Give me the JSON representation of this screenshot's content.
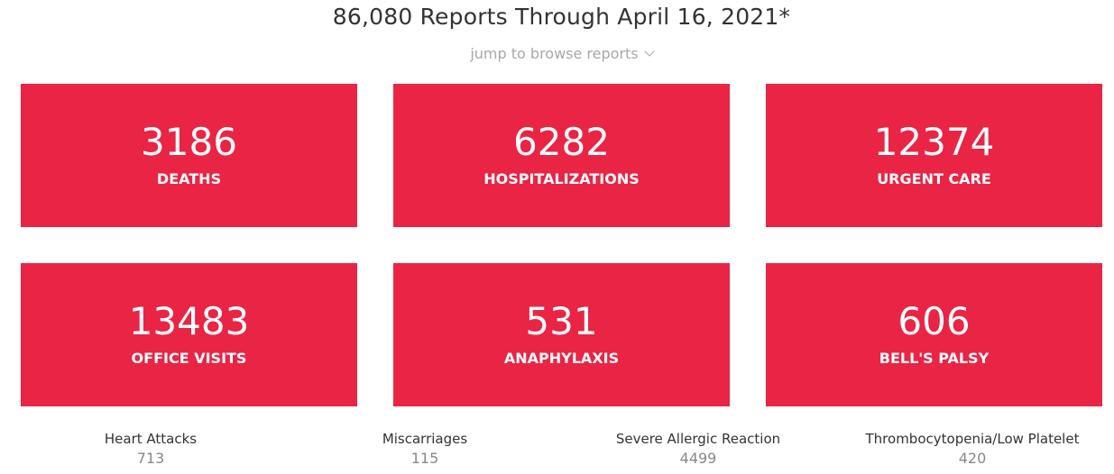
{
  "header": {
    "title": "86,080 Reports Through April 16, 2021*",
    "jump_label": "jump to browse reports"
  },
  "colors": {
    "accent": "#EA2444"
  },
  "cards": [
    {
      "value": "3186",
      "label": "DEATHS"
    },
    {
      "value": "6282",
      "label": "HOSPITALIZATIONS"
    },
    {
      "value": "12374",
      "label": "URGENT CARE"
    },
    {
      "value": "13483",
      "label": "OFFICE VISITS"
    },
    {
      "value": "531",
      "label": "ANAPHYLAXIS"
    },
    {
      "value": "606",
      "label": "BELL'S PALSY"
    }
  ],
  "stats": [
    {
      "label": "Heart Attacks",
      "value": "713"
    },
    {
      "label": "Miscarriages",
      "value": "115"
    },
    {
      "label": "Severe Allergic Reaction",
      "value": "4499"
    },
    {
      "label": "Thrombocytopenia/Low Platelet",
      "value": "420"
    }
  ]
}
